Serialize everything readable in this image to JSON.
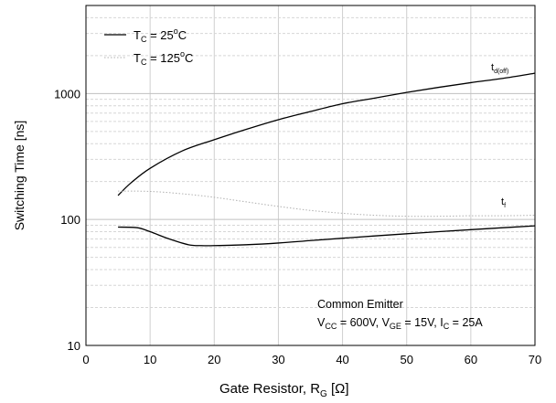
{
  "chart_data": {
    "type": "line",
    "title": "",
    "xlabel": {
      "main": "Gate Resistor, R",
      "sub": "G",
      "unit": " [Ω]"
    },
    "ylabel": "Switching Time [ns]",
    "xlim": [
      0,
      70
    ],
    "ylim": [
      10,
      5000
    ],
    "yscale": "log",
    "grid": true,
    "legend_position": "top-left",
    "xticks": [
      0,
      10,
      20,
      30,
      40,
      50,
      60,
      70
    ],
    "yticks": [
      10,
      100,
      1000
    ],
    "xtick_labels": [
      "0",
      "10",
      "20",
      "30",
      "40",
      "50",
      "60",
      "70"
    ],
    "ytick_labels": [
      "10",
      "100",
      "1000"
    ],
    "series": [
      {
        "name": "T_C = 25°C",
        "legend": {
          "a": "T",
          "sub": "C",
          "b": " = 25",
          "sup": "o",
          "c": "C"
        },
        "style": "solid",
        "color": "#000000",
        "curves": [
          {
            "label": "t_d(off)",
            "x": [
              5,
              7,
              10,
              15,
              20,
              25,
              30,
              35,
              40,
              45,
              50,
              55,
              60,
              65,
              70
            ],
            "y": [
              155,
              195,
              255,
              350,
              430,
              520,
              620,
              720,
              830,
              920,
              1020,
              1120,
              1220,
              1320,
              1450
            ]
          },
          {
            "label": "t_f",
            "x": [
              5,
              8,
              10,
              13,
              16,
              18,
              20,
              25,
              30,
              35,
              40,
              45,
              50,
              55,
              60,
              65,
              70
            ],
            "y": [
              87,
              86,
              80,
              70,
              63,
              62,
              62,
              63,
              65,
              68,
              71,
              74,
              77,
              80,
              83,
              86,
              89
            ]
          }
        ]
      },
      {
        "name": "T_C = 125°C",
        "legend": {
          "a": "T",
          "sub": "C",
          "b": " = 125",
          "sup": "o",
          "c": "C"
        },
        "style": "dotted",
        "color": "#b0b0b0",
        "curves": [
          {
            "label": "t_f",
            "x": [
              5,
              10,
              15,
              20,
              25,
              30,
              35,
              40,
              45,
              50,
              55,
              60,
              65,
              70
            ],
            "y": [
              168,
              167,
              160,
              150,
              138,
              127,
              118,
              112,
              108,
              106,
              106,
              107,
              107,
              108
            ]
          }
        ]
      }
    ],
    "curve_labels": [
      {
        "main": "t",
        "sub": "d(off)"
      },
      {
        "main": "t",
        "sub": "f"
      }
    ],
    "annotation": {
      "line1": "Common Emitter",
      "line2": [
        {
          "t": "V"
        },
        {
          "t": "CC",
          "sub": true
        },
        {
          "t": " = 600V, V"
        },
        {
          "t": "GE",
          "sub": true
        },
        {
          "t": " = 15V, I"
        },
        {
          "t": "C",
          "sub": true
        },
        {
          "t": " = 25A"
        }
      ]
    }
  }
}
